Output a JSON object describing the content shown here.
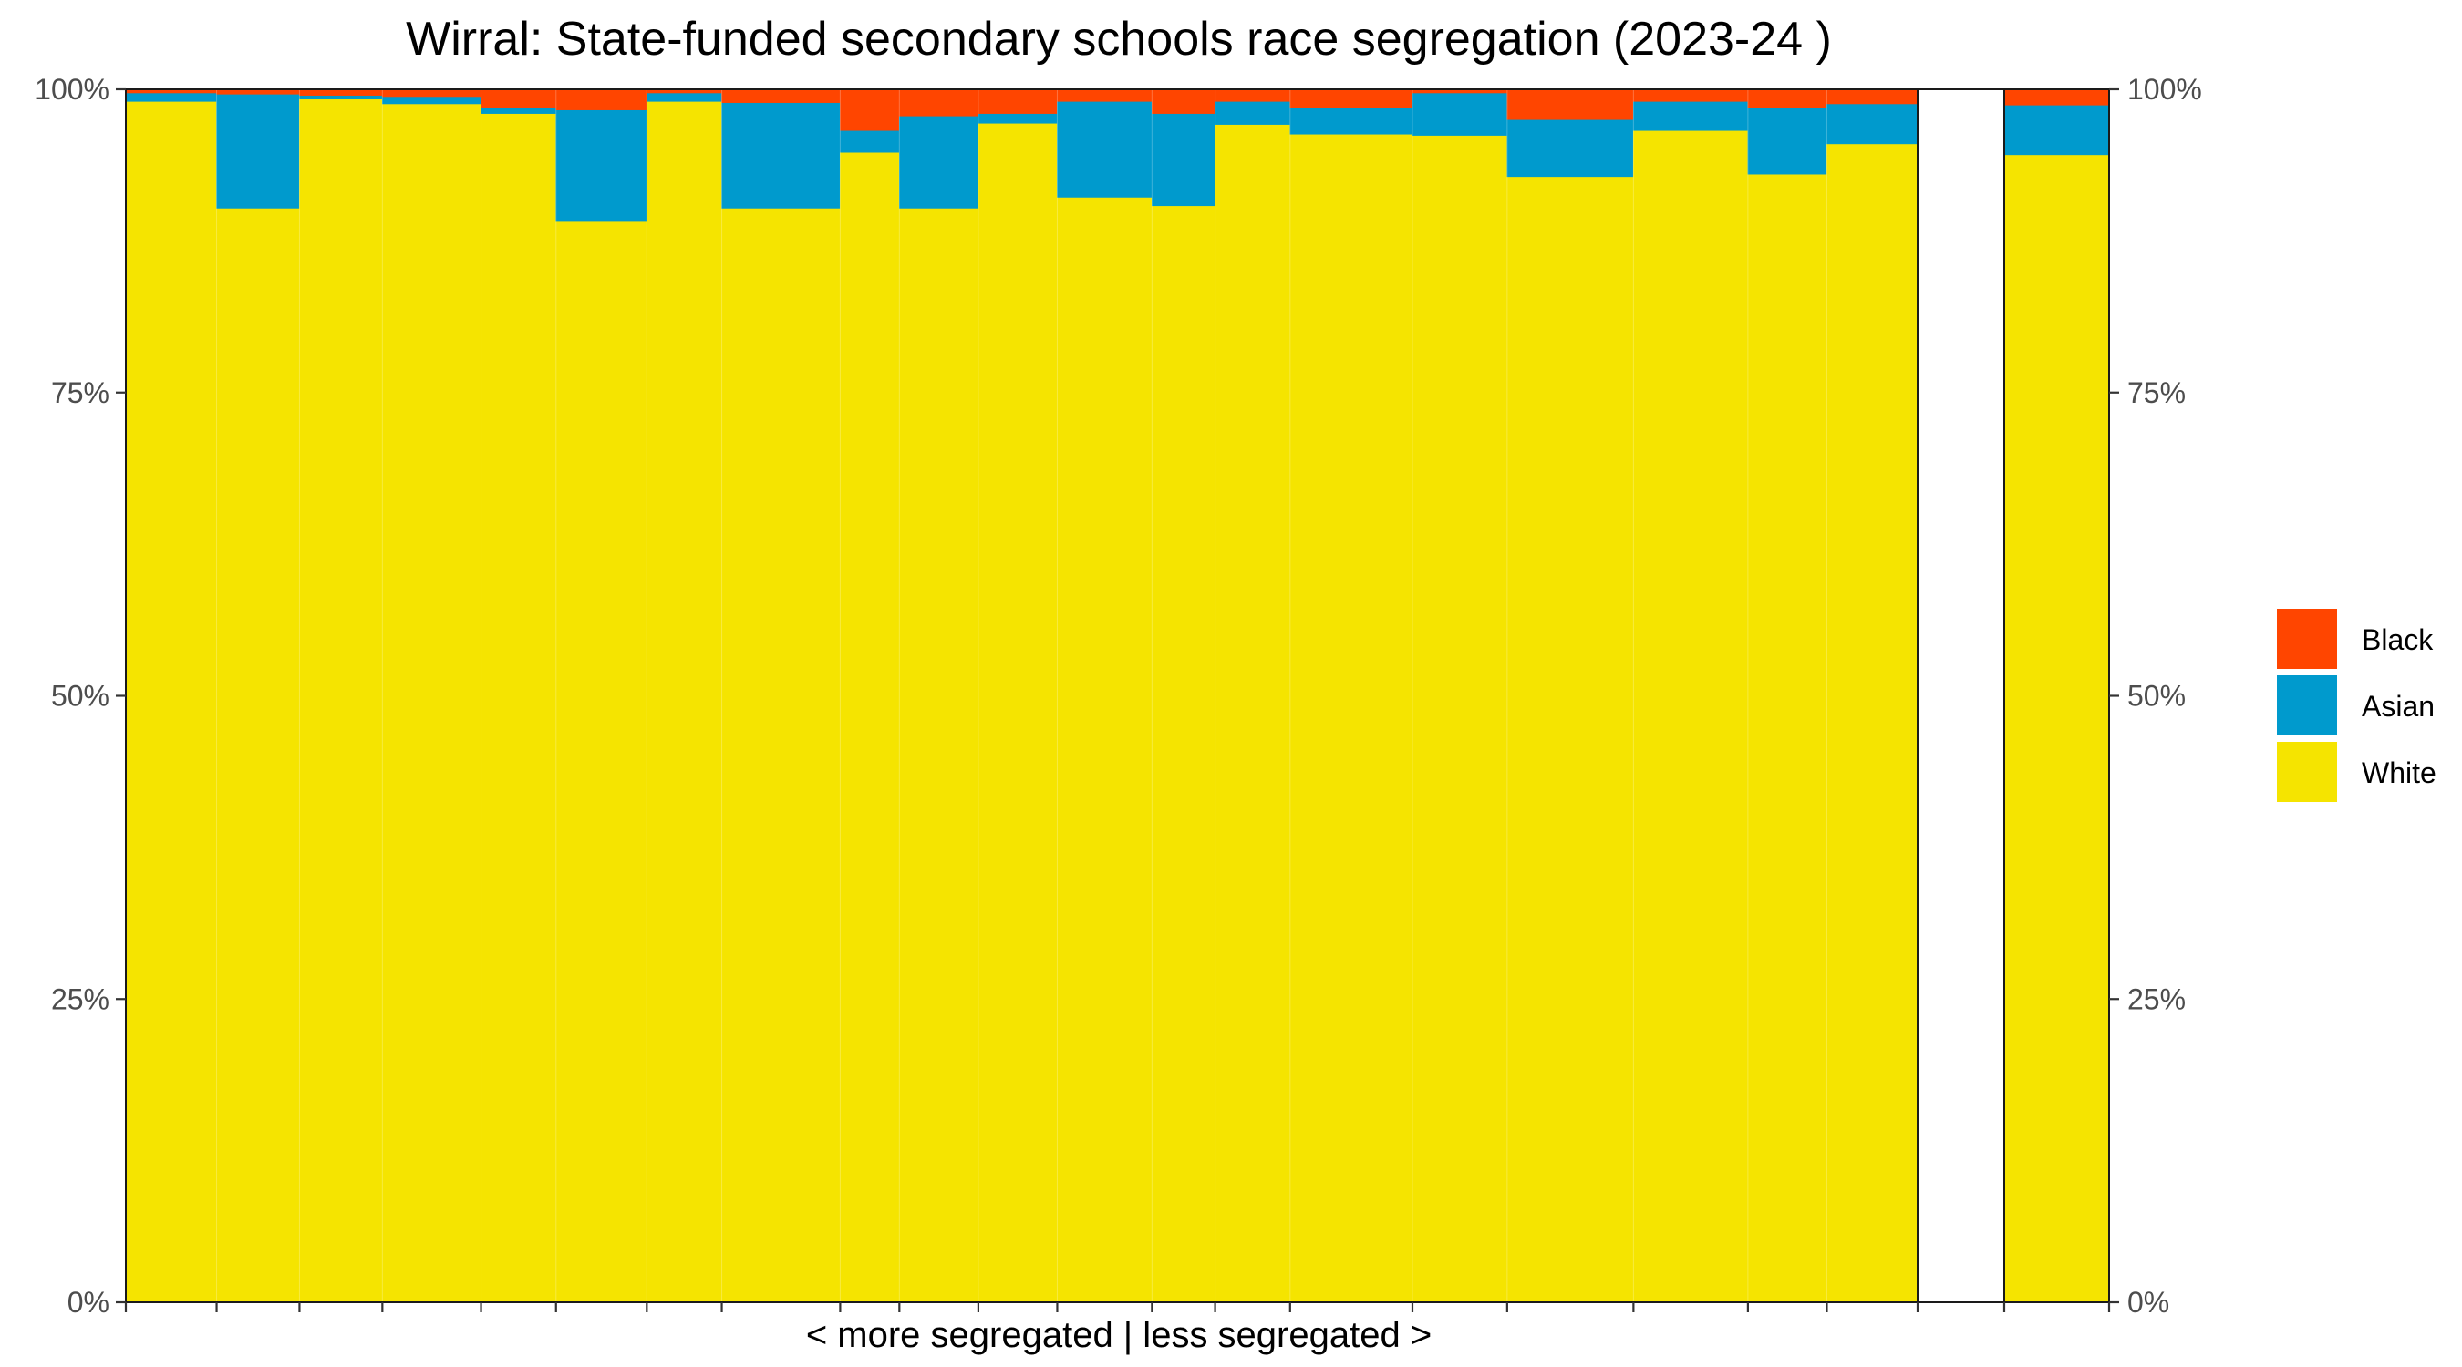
{
  "chart_data": {
    "type": "bar",
    "title": "Wirral: State-funded secondary schools race segregation (2023-24 )",
    "xlabel": "< more segregated | less segregated >",
    "ylabel": "",
    "ylim": [
      0,
      1
    ],
    "y_ticks": [
      "0%",
      "25%",
      "50%",
      "75%",
      "100%"
    ],
    "y_tick_values": [
      0,
      0.25,
      0.5,
      0.75,
      1
    ],
    "variable_width": true,
    "legend_position": "right",
    "series": [
      {
        "name": "White",
        "color": "#F5E400"
      },
      {
        "name": "Asian",
        "color": "#009ACD"
      },
      {
        "name": "Black",
        "color": "#FF4500"
      }
    ],
    "schools": [
      {
        "w": 2.3,
        "white": 0.99,
        "asian": 0.007,
        "black": 0.003
      },
      {
        "w": 2.1,
        "white": 0.902,
        "asian": 0.094,
        "black": 0.004
      },
      {
        "w": 2.1,
        "white": 0.992,
        "asian": 0.003,
        "black": 0.005
      },
      {
        "w": 2.5,
        "white": 0.988,
        "asian": 0.006,
        "black": 0.006
      },
      {
        "w": 1.9,
        "white": 0.98,
        "asian": 0.005,
        "black": 0.015
      },
      {
        "w": 2.3,
        "white": 0.891,
        "asian": 0.092,
        "black": 0.017
      },
      {
        "w": 1.9,
        "white": 0.99,
        "asian": 0.007,
        "black": 0.003
      },
      {
        "w": 3.0,
        "white": 0.902,
        "asian": 0.087,
        "black": 0.011
      },
      {
        "w": 1.5,
        "white": 0.948,
        "asian": 0.018,
        "black": 0.034
      },
      {
        "w": 2.0,
        "white": 0.902,
        "asian": 0.076,
        "black": 0.022
      },
      {
        "w": 2.0,
        "white": 0.972,
        "asian": 0.008,
        "black": 0.02
      },
      {
        "w": 2.4,
        "white": 0.911,
        "asian": 0.079,
        "black": 0.01
      },
      {
        "w": 1.6,
        "white": 0.904,
        "asian": 0.076,
        "black": 0.02
      },
      {
        "w": 1.9,
        "white": 0.971,
        "asian": 0.019,
        "black": 0.01
      },
      {
        "w": 3.1,
        "white": 0.963,
        "asian": 0.022,
        "black": 0.015
      },
      {
        "w": 2.4,
        "white": 0.962,
        "asian": 0.035,
        "black": 0.003
      },
      {
        "w": 3.2,
        "white": 0.928,
        "asian": 0.047,
        "black": 0.025
      },
      {
        "w": 2.9,
        "white": 0.966,
        "asian": 0.024,
        "black": 0.01
      },
      {
        "w": 2.0,
        "white": 0.93,
        "asian": 0.055,
        "black": 0.015
      },
      {
        "w": 2.3,
        "white": 0.955,
        "asian": 0.033,
        "black": 0.012
      }
    ],
    "summary": {
      "white": 0.946,
      "asian": 0.041,
      "black": 0.013
    }
  }
}
